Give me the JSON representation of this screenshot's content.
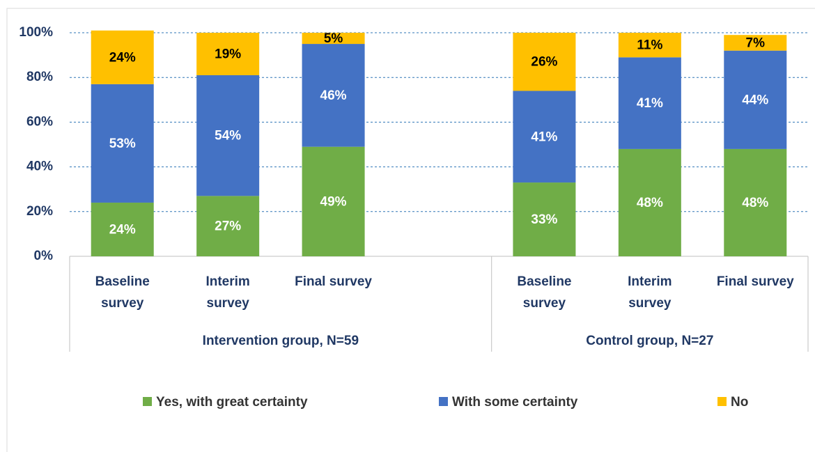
{
  "chart_data": {
    "type": "stacked_bar",
    "categories": [
      "Baseline survey",
      "Interim survey",
      "Final survey",
      null,
      "Baseline survey",
      "Interim survey",
      "Final survey"
    ],
    "groups": [
      "Intervention group, N=59",
      "Control group, N=27"
    ],
    "series": [
      {
        "name": "Yes, with great certainty",
        "color": "#70ad47",
        "values": [
          24,
          27,
          49,
          null,
          33,
          48,
          48
        ],
        "value_labels": [
          "24%",
          "27%",
          "49%",
          null,
          "33%",
          "48%",
          "48%"
        ]
      },
      {
        "name": "With some certainty",
        "color": "#4472c4",
        "values": [
          53,
          54,
          46,
          null,
          41,
          41,
          44
        ],
        "value_labels": [
          "53%",
          "54%",
          "46%",
          null,
          "41%",
          "41%",
          "44%"
        ]
      },
      {
        "name": "No",
        "color": "#ffc000",
        "values": [
          24,
          19,
          5,
          null,
          26,
          11,
          7
        ],
        "value_labels": [
          "24%",
          "19%",
          "5%",
          null,
          "26%",
          "11%",
          "7%"
        ]
      }
    ],
    "ylim": [
      0,
      100
    ],
    "yticks": [
      {
        "value": 0,
        "label": "0%"
      },
      {
        "value": 20,
        "label": "20%"
      },
      {
        "value": 40,
        "label": "40%"
      },
      {
        "value": 60,
        "label": "60%"
      },
      {
        "value": 80,
        "label": "80%"
      },
      {
        "value": 100,
        "label": "100%"
      }
    ],
    "grid": true,
    "legend": "bottom"
  }
}
